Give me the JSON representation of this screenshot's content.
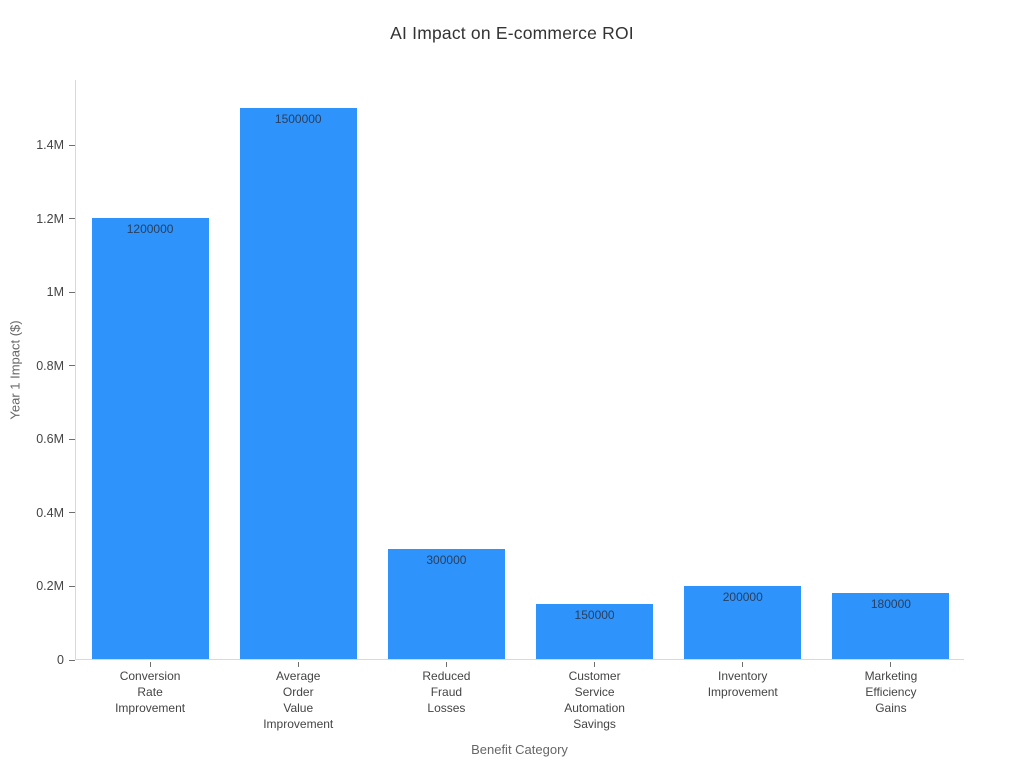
{
  "chart_data": {
    "type": "bar",
    "title": "AI Impact on E-commerce ROI",
    "xlabel": "Benefit Category",
    "ylabel": "Year 1 Impact ($)",
    "categories": [
      [
        "Conversion",
        "Rate",
        "Improvement"
      ],
      [
        "Average",
        "Order",
        "Value",
        "Improvement"
      ],
      [
        "Reduced",
        "Fraud",
        "Losses"
      ],
      [
        "Customer",
        "Service",
        "Automation",
        "Savings"
      ],
      [
        "Inventory",
        "Improvement"
      ],
      [
        "Marketing",
        "Efficiency",
        "Gains"
      ]
    ],
    "values": [
      1200000,
      1500000,
      300000,
      150000,
      200000,
      180000
    ],
    "bar_labels": [
      "1200000",
      "1500000",
      "300000",
      "150000",
      "200000",
      "180000"
    ],
    "ylim": [
      0,
      1578000
    ],
    "yticks": {
      "values": [
        0,
        200000,
        400000,
        600000,
        800000,
        1000000,
        1200000,
        1400000
      ],
      "labels": [
        "0",
        "0.2M",
        "0.4M",
        "0.6M",
        "0.8M",
        "1M",
        "1.2M",
        "1.4M"
      ]
    },
    "grid": false,
    "legend": false,
    "colors": {
      "bar": "#2E93fA",
      "bar_label_text": "#2a3f5f",
      "tick_text": "#444444",
      "axis_title_text": "#666666",
      "title_text": "#333333",
      "axis_line": "#d9d9d9",
      "tick_mark": "#6e6e6e",
      "background": "#ffffff"
    }
  }
}
